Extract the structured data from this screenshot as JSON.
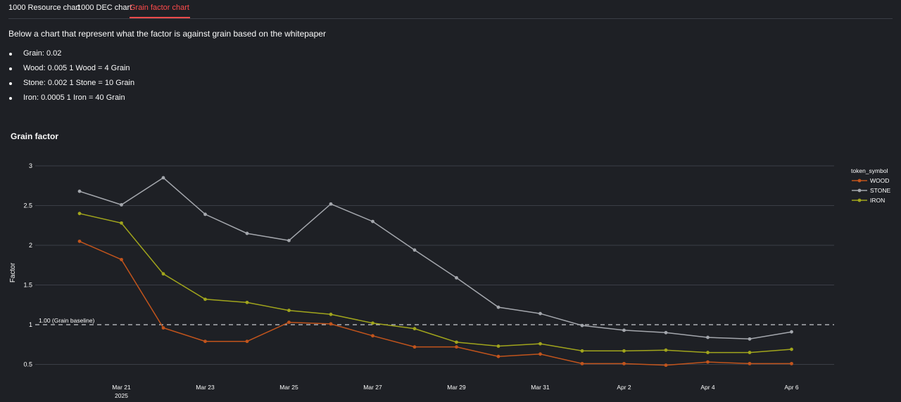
{
  "tabs": [
    {
      "label": "1000 Resource chart"
    },
    {
      "label": "1000 DEC chart"
    },
    {
      "label": "Grain factor chart"
    }
  ],
  "intro_text": "Below a chart that represent what the factor is against grain based on the whitepaper",
  "factor_list": [
    "Grain: 0.02",
    "Wood: 0.005 1 Wood = 4 Grain",
    "Stone: 0.002 1 Stone = 10 Grain",
    "Iron: 0.0005 1 Iron = 40 Grain"
  ],
  "colors": {
    "accent": "#ff4b4b",
    "wood": "#c2541c",
    "stone": "#a4a7ad",
    "iron": "#a1a51c"
  },
  "chart_data": {
    "type": "line",
    "title": "Grain factor",
    "xlabel": "",
    "ylabel": "Factor",
    "x": [
      "Mar 20",
      "Mar 21",
      "Mar 22",
      "Mar 23",
      "Mar 24",
      "Mar 25",
      "Mar 26",
      "Mar 27",
      "Mar 28",
      "Mar 29",
      "Mar 30",
      "Mar 31",
      "Apr 1",
      "Apr 2",
      "Apr 3",
      "Apr 4",
      "Apr 5",
      "Apr 6"
    ],
    "x_ticks": [
      "Mar 21",
      "Mar 23",
      "Mar 25",
      "Mar 27",
      "Mar 29",
      "Mar 31",
      "Apr 2",
      "Apr 4",
      "Apr 6"
    ],
    "x_year_label": "2025",
    "y_ticks": [
      "0.5",
      "1",
      "1.5",
      "2",
      "2.5",
      "3"
    ],
    "ylim": [
      0.45,
      3.1
    ],
    "legend_title": "token_symbol",
    "legend_position": "right",
    "series": [
      {
        "name": "WOOD",
        "color": "#c2541c",
        "values": [
          2.05,
          1.82,
          0.96,
          0.79,
          0.79,
          1.03,
          1.01,
          0.86,
          0.72,
          0.72,
          0.6,
          0.63,
          0.51,
          0.51,
          0.49,
          0.53,
          0.51,
          0.51
        ]
      },
      {
        "name": "STONE",
        "color": "#a4a7ad",
        "values": [
          2.68,
          2.51,
          2.85,
          2.39,
          2.15,
          2.06,
          2.52,
          2.3,
          1.94,
          1.59,
          1.22,
          1.14,
          0.99,
          0.93,
          0.9,
          0.84,
          0.82,
          0.91
        ]
      },
      {
        "name": "IRON",
        "color": "#a1a51c",
        "values": [
          2.4,
          2.28,
          1.64,
          1.32,
          1.28,
          1.18,
          1.13,
          1.02,
          0.95,
          0.78,
          0.73,
          0.76,
          0.67,
          0.67,
          0.68,
          0.65,
          0.65,
          0.69
        ]
      }
    ],
    "baseline": {
      "value": 1.0,
      "label": "1.00 (Grain baseline)"
    }
  }
}
